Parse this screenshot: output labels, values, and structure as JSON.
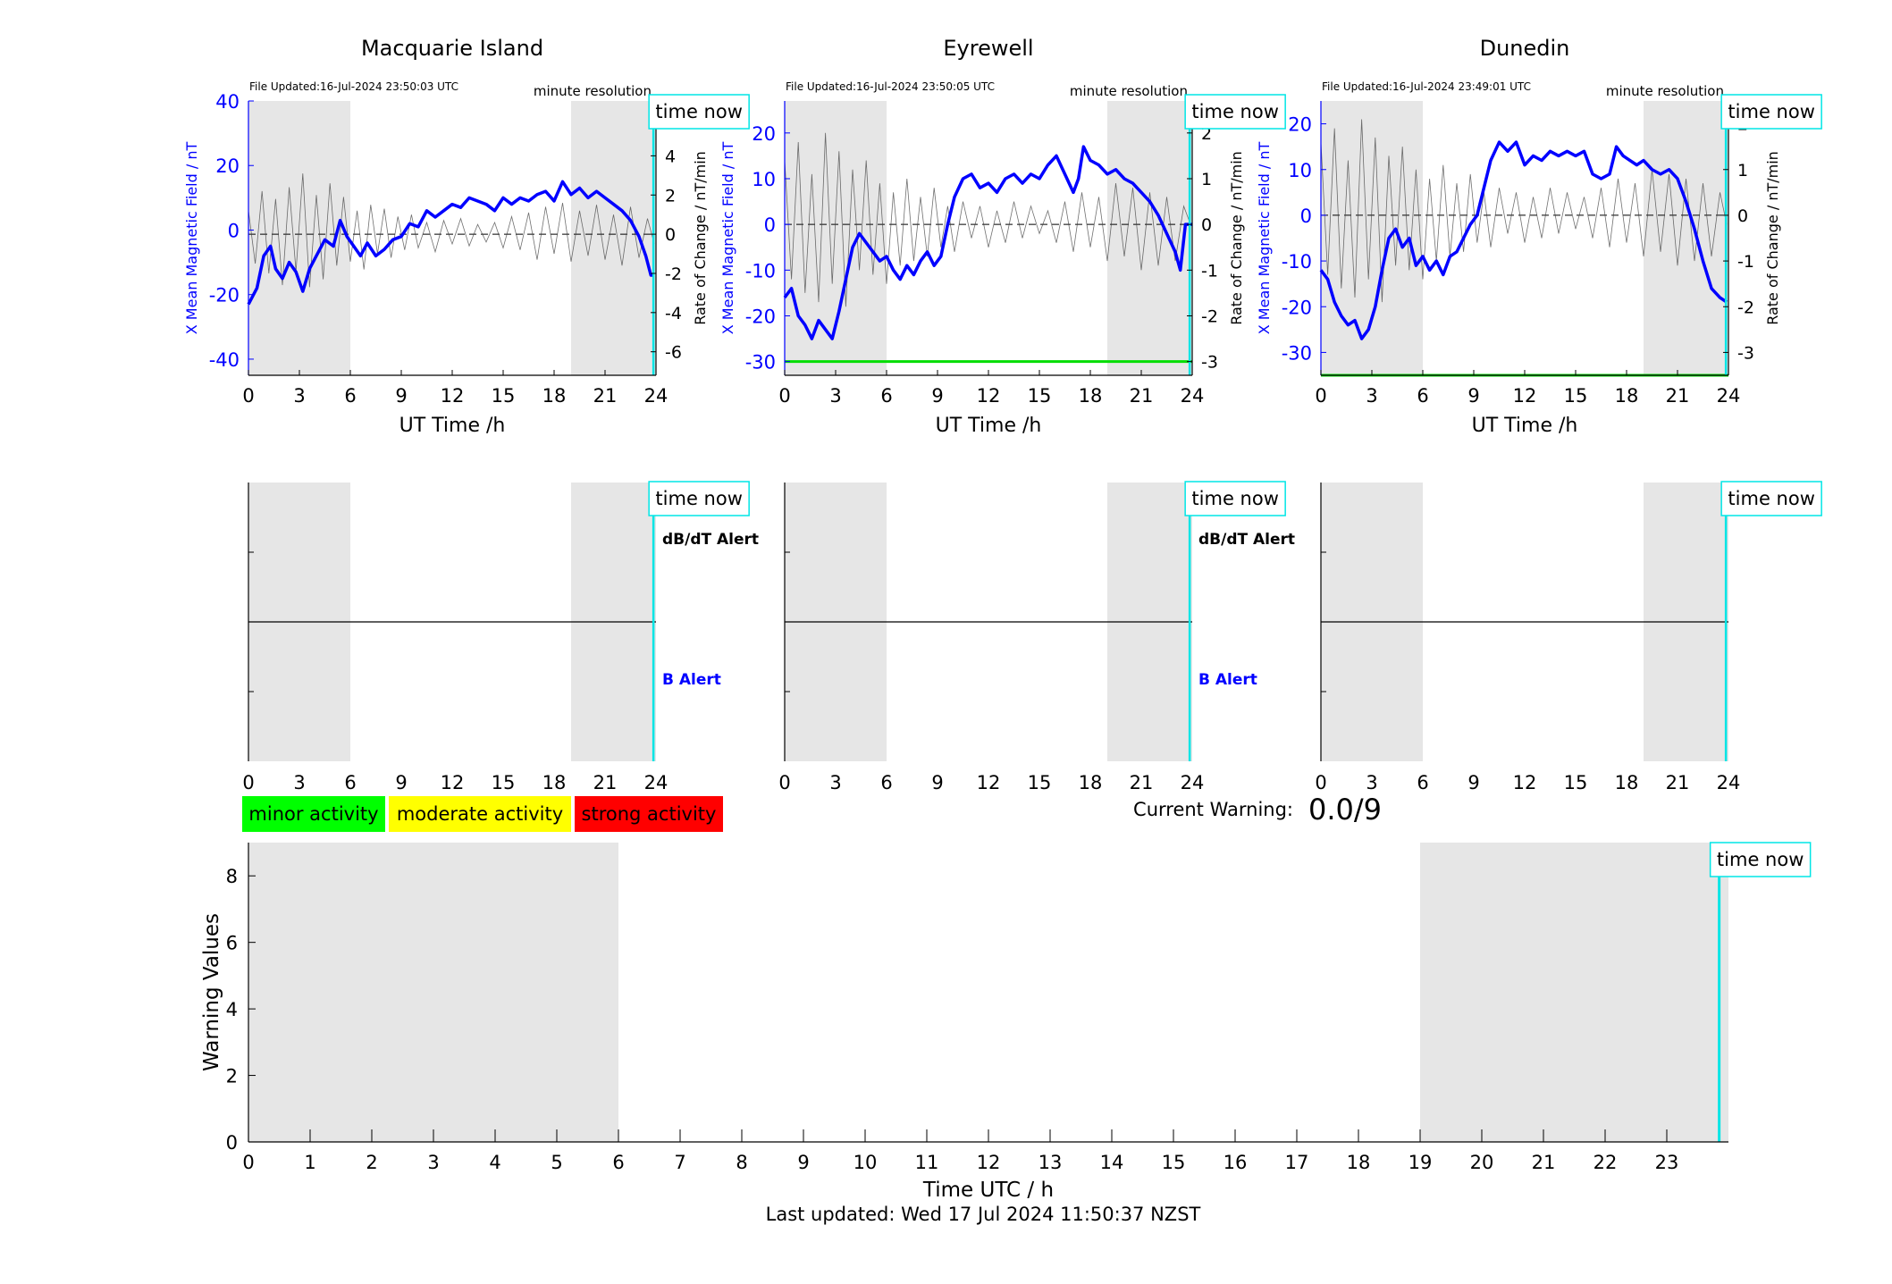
{
  "footer": "Last updated: Wed 17 Jul 2024 11:50:37 NZST",
  "current_warning": {
    "label": "Current Warning:",
    "value": "0.0/9"
  },
  "legend": [
    {
      "label": "minor activity",
      "color": "#00ff00"
    },
    {
      "label": "moderate activity",
      "color": "#ffff00"
    },
    {
      "label": "strong activity",
      "color": "#ff0000"
    }
  ],
  "time_now_label": "time now",
  "colors": {
    "field": "#0000ff",
    "rate": "#404040",
    "shade": "#e6e6e6",
    "now": "#00e5e5",
    "threshold": "#00dd00"
  },
  "chart_data": [
    {
      "type": "line",
      "title": "Macquarie Island",
      "file_updated": "File Updated:16-Jul-2024 23:50:03 UTC",
      "resolution": "minute resolution",
      "xlabel": "UT Time /h",
      "ylabel": "X Mean Magnetic Field / nT",
      "y2label": "Rate of Change / nT/min",
      "xlim": [
        0,
        24
      ],
      "ylim": [
        -45,
        40
      ],
      "y2lim": [
        -7.2,
        6.8
      ],
      "xticks": [
        0,
        3,
        6,
        9,
        12,
        15,
        18,
        21,
        24
      ],
      "yticks": [
        -40,
        -20,
        0,
        20,
        40
      ],
      "y2ticks": [
        -6,
        -4,
        -2,
        0,
        2,
        4,
        6
      ],
      "shaded": [
        [
          0,
          6
        ],
        [
          19,
          24
        ]
      ],
      "time_now": 23.85,
      "threshold": null,
      "series": [
        {
          "name": "X Mean Magnetic Field",
          "x": [
            0,
            0.5,
            0.9,
            1.3,
            1.6,
            2.0,
            2.4,
            2.8,
            3.2,
            3.6,
            4.0,
            4.5,
            5.0,
            5.4,
            5.8,
            6.2,
            6.6,
            7.0,
            7.5,
            8.0,
            8.5,
            9.0,
            9.5,
            10.0,
            10.5,
            11.0,
            11.5,
            12.0,
            12.5,
            13.0,
            13.5,
            14.0,
            14.5,
            15.0,
            15.5,
            16.0,
            16.5,
            17.0,
            17.5,
            18.0,
            18.5,
            19.0,
            19.5,
            20.0,
            20.5,
            21.0,
            21.5,
            22.0,
            22.5,
            23.0,
            23.4,
            23.7,
            23.9
          ],
          "y": [
            -23,
            -18,
            -8,
            -5,
            -12,
            -15,
            -10,
            -13,
            -19,
            -12,
            -8,
            -3,
            -5,
            3,
            -2,
            -5,
            -8,
            -4,
            -8,
            -6,
            -3,
            -2,
            2,
            1,
            6,
            4,
            6,
            8,
            7,
            10,
            9,
            8,
            6,
            10,
            8,
            10,
            9,
            11,
            12,
            9,
            15,
            11,
            13,
            10,
            12,
            10,
            8,
            6,
            3,
            -2,
            -8,
            -14,
            -14
          ]
        },
        {
          "name": "Rate of Change",
          "x": [
            0,
            0.4,
            0.8,
            1.2,
            1.6,
            2.0,
            2.4,
            2.8,
            3.2,
            3.6,
            4.0,
            4.4,
            4.8,
            5.2,
            5.6,
            6.0,
            6.4,
            6.8,
            7.2,
            7.6,
            8.0,
            8.4,
            8.8,
            9.2,
            9.6,
            10.0,
            10.5,
            11.0,
            11.5,
            12.0,
            12.5,
            13.0,
            13.5,
            14.0,
            14.5,
            15.0,
            15.5,
            16.0,
            16.5,
            17.0,
            17.5,
            18.0,
            18.5,
            19.0,
            19.5,
            20.0,
            20.5,
            21.0,
            21.5,
            22.0,
            22.5,
            23.0,
            23.5,
            23.9
          ],
          "y": [
            1.2,
            -1.5,
            2.2,
            -2.0,
            1.8,
            -2.6,
            2.4,
            -1.9,
            3.1,
            -2.7,
            2.0,
            -2.3,
            2.6,
            -1.6,
            1.9,
            -1.4,
            1.2,
            -1.8,
            1.5,
            -1.0,
            1.3,
            -1.2,
            0.9,
            -0.8,
            1.0,
            -0.7,
            0.6,
            -0.9,
            0.7,
            -0.5,
            0.8,
            -0.6,
            0.5,
            -0.4,
            0.6,
            -0.7,
            0.9,
            -0.8,
            1.1,
            -1.3,
            1.4,
            -1.0,
            1.6,
            -1.4,
            1.2,
            -1.1,
            1.5,
            -1.3,
            1.0,
            -1.6,
            1.4,
            -1.2,
            0.8,
            -0.5
          ]
        }
      ]
    },
    {
      "type": "line",
      "title": "Eyrewell",
      "file_updated": "File Updated:16-Jul-2024 23:50:05 UTC",
      "resolution": "minute resolution",
      "xlabel": "UT Time /h",
      "ylabel": "X Mean Magnetic Field / nT",
      "y2label": "Rate of Change / nT/min",
      "xlim": [
        0,
        24
      ],
      "ylim": [
        -33,
        27
      ],
      "y2lim": [
        -3.3,
        2.7
      ],
      "xticks": [
        0,
        3,
        6,
        9,
        12,
        15,
        18,
        21,
        24
      ],
      "yticks": [
        -30,
        -20,
        -10,
        0,
        10,
        20
      ],
      "y2ticks": [
        -3,
        -2,
        -1,
        0,
        1,
        2
      ],
      "shaded": [
        [
          0,
          6
        ],
        [
          19,
          24
        ]
      ],
      "time_now": 23.85,
      "threshold": -30,
      "series": [
        {
          "name": "X Mean Magnetic Field",
          "x": [
            0,
            0.4,
            0.8,
            1.2,
            1.6,
            2.0,
            2.4,
            2.8,
            3.2,
            3.6,
            4.0,
            4.4,
            4.8,
            5.2,
            5.6,
            6.0,
            6.4,
            6.8,
            7.2,
            7.6,
            8.0,
            8.4,
            8.8,
            9.2,
            9.6,
            10.0,
            10.5,
            11.0,
            11.5,
            12.0,
            12.5,
            13.0,
            13.5,
            14.0,
            14.5,
            15.0,
            15.5,
            16.0,
            16.5,
            17.0,
            17.3,
            17.6,
            18.0,
            18.5,
            19.0,
            19.5,
            20.0,
            20.5,
            21.0,
            21.5,
            22.0,
            22.5,
            23.0,
            23.3,
            23.6,
            24.0
          ],
          "y": [
            -16,
            -14,
            -20,
            -22,
            -25,
            -21,
            -23,
            -25,
            -19,
            -12,
            -5,
            -2,
            -4,
            -6,
            -8,
            -7,
            -10,
            -12,
            -9,
            -11,
            -8,
            -6,
            -9,
            -7,
            0,
            6,
            10,
            11,
            8,
            9,
            7,
            10,
            11,
            9,
            11,
            10,
            13,
            15,
            11,
            7,
            10,
            17,
            14,
            13,
            11,
            12,
            10,
            9,
            7,
            5,
            2,
            -2,
            -6,
            -10,
            0,
            0
          ]
        },
        {
          "name": "Rate of Change",
          "x": [
            0,
            0.4,
            0.8,
            1.2,
            1.6,
            2.0,
            2.4,
            2.8,
            3.2,
            3.6,
            4.0,
            4.4,
            4.8,
            5.2,
            5.6,
            6.0,
            6.4,
            6.8,
            7.2,
            7.6,
            8.0,
            8.4,
            8.8,
            9.2,
            9.6,
            10.0,
            10.5,
            11.0,
            11.5,
            12.0,
            12.5,
            13.0,
            13.5,
            14.0,
            14.5,
            15.0,
            15.5,
            16.0,
            16.5,
            17.0,
            17.5,
            18.0,
            18.5,
            19.0,
            19.5,
            20.0,
            20.5,
            21.0,
            21.5,
            22.0,
            22.5,
            23.0,
            23.5,
            23.9
          ],
          "y": [
            1.4,
            -1.2,
            1.8,
            -1.5,
            1.1,
            -1.7,
            2.0,
            -1.3,
            1.6,
            -1.8,
            1.2,
            -1.0,
            1.4,
            -1.1,
            0.9,
            -1.3,
            0.7,
            -0.9,
            1.0,
            -0.8,
            0.6,
            -0.7,
            0.8,
            -0.5,
            0.4,
            -0.6,
            0.5,
            -0.3,
            0.4,
            -0.5,
            0.3,
            -0.4,
            0.5,
            -0.3,
            0.4,
            -0.2,
            0.3,
            -0.4,
            0.5,
            -0.6,
            0.7,
            -0.5,
            0.6,
            -0.8,
            0.9,
            -0.7,
            0.8,
            -1.0,
            0.7,
            -0.9,
            0.6,
            -0.8,
            0.4,
            0.0
          ]
        }
      ]
    },
    {
      "type": "line",
      "title": "Dunedin",
      "file_updated": "File Updated:16-Jul-2024 23:49:01 UTC",
      "resolution": "minute resolution",
      "xlabel": "UT Time /h",
      "ylabel": "X Mean Magnetic Field / nT",
      "y2label": "Rate of Change / nT/min",
      "xlim": [
        0,
        24
      ],
      "ylim": [
        -35,
        25
      ],
      "y2lim": [
        -3.5,
        2.5
      ],
      "xticks": [
        0,
        3,
        6,
        9,
        12,
        15,
        18,
        21,
        24
      ],
      "yticks": [
        -30,
        -20,
        -10,
        0,
        10,
        20
      ],
      "y2ticks": [
        -3,
        -2,
        -1,
        0,
        1,
        2
      ],
      "shaded": [
        [
          0,
          6
        ],
        [
          19,
          24
        ]
      ],
      "time_now": 23.85,
      "threshold": -35,
      "series": [
        {
          "name": "X Mean Magnetic Field",
          "x": [
            0,
            0.4,
            0.8,
            1.2,
            1.6,
            2.0,
            2.4,
            2.8,
            3.2,
            3.6,
            4.0,
            4.4,
            4.8,
            5.2,
            5.6,
            6.0,
            6.4,
            6.8,
            7.2,
            7.6,
            8.0,
            8.4,
            8.8,
            9.2,
            9.6,
            10.0,
            10.5,
            11.0,
            11.5,
            12.0,
            12.5,
            13.0,
            13.5,
            14.0,
            14.5,
            15.0,
            15.5,
            16.0,
            16.5,
            17.0,
            17.4,
            17.8,
            18.2,
            18.6,
            19.0,
            19.5,
            20.0,
            20.5,
            21.0,
            21.5,
            22.0,
            22.5,
            23.0,
            23.5,
            23.9
          ],
          "y": [
            -12,
            -14,
            -19,
            -22,
            -24,
            -23,
            -27,
            -25,
            -20,
            -12,
            -5,
            -3,
            -7,
            -5,
            -11,
            -9,
            -12,
            -10,
            -13,
            -9,
            -8,
            -5,
            -2,
            0,
            6,
            12,
            16,
            14,
            16,
            11,
            13,
            12,
            14,
            13,
            14,
            13,
            14,
            9,
            8,
            9,
            15,
            13,
            12,
            11,
            12,
            10,
            9,
            10,
            8,
            3,
            -3,
            -10,
            -16,
            -18,
            -19
          ]
        },
        {
          "name": "Rate of Change",
          "x": [
            0,
            0.4,
            0.8,
            1.2,
            1.6,
            2.0,
            2.4,
            2.8,
            3.2,
            3.6,
            4.0,
            4.4,
            4.8,
            5.2,
            5.6,
            6.0,
            6.4,
            6.8,
            7.2,
            7.6,
            8.0,
            8.4,
            8.8,
            9.2,
            9.6,
            10.0,
            10.5,
            11.0,
            11.5,
            12.0,
            12.5,
            13.0,
            13.5,
            14.0,
            14.5,
            15.0,
            15.5,
            16.0,
            16.5,
            17.0,
            17.5,
            18.0,
            18.5,
            19.0,
            19.5,
            20.0,
            20.5,
            21.0,
            21.5,
            22.0,
            22.5,
            23.0,
            23.5,
            23.9
          ],
          "y": [
            1.6,
            -1.3,
            1.9,
            -1.6,
            1.2,
            -1.8,
            2.1,
            -1.4,
            1.7,
            -1.9,
            1.3,
            -1.1,
            1.5,
            -1.2,
            1.0,
            -1.4,
            0.8,
            -1.0,
            1.1,
            -0.9,
            0.7,
            -0.8,
            0.9,
            -0.6,
            0.5,
            -0.7,
            0.6,
            -0.4,
            0.5,
            -0.6,
            0.4,
            -0.5,
            0.6,
            -0.4,
            0.5,
            -0.3,
            0.4,
            -0.5,
            0.6,
            -0.7,
            0.8,
            -0.6,
            0.7,
            -0.9,
            1.0,
            -0.8,
            0.9,
            -1.1,
            0.8,
            -1.0,
            0.7,
            -0.9,
            0.5,
            -0.2
          ]
        }
      ]
    },
    {
      "type": "line",
      "panels": [
        "Macquarie Island",
        "Eyrewell",
        "Dunedin"
      ],
      "alert_labels": [
        "dB/dT Alert",
        "B Alert"
      ],
      "xlim": [
        0,
        24
      ],
      "xticks": [
        0,
        3,
        6,
        9,
        12,
        15,
        18,
        21,
        24
      ],
      "shaded": [
        [
          0,
          6
        ],
        [
          19,
          24
        ]
      ],
      "time_now": 23.85,
      "series": [
        {
          "x": [
            0,
            24
          ],
          "y": [
            0,
            0
          ]
        }
      ]
    },
    {
      "type": "bar",
      "xlabel": "Time UTC / h",
      "ylabel": "Warning Values",
      "xlim": [
        0,
        24
      ],
      "ylim": [
        0,
        9
      ],
      "xticks": [
        0,
        1,
        2,
        3,
        4,
        5,
        6,
        7,
        8,
        9,
        10,
        11,
        12,
        13,
        14,
        15,
        16,
        17,
        18,
        19,
        20,
        21,
        22,
        23
      ],
      "yticks": [
        0,
        2,
        4,
        6,
        8
      ],
      "shaded": [
        [
          0,
          6
        ],
        [
          19,
          24
        ]
      ],
      "time_now": 23.85,
      "values": []
    }
  ]
}
